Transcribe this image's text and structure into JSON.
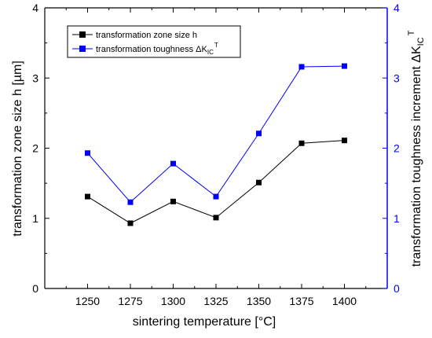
{
  "chart_data": {
    "type": "line",
    "xlabel": "sintering temperature [°C]",
    "ylabel_left": "transformation zone size h [µm]",
    "ylabel_right": "transformation toughness increment ΔK",
    "ylabel_right_sub": "IC",
    "ylabel_right_sup": "T",
    "x": [
      1250,
      1275,
      1300,
      1325,
      1350,
      1375,
      1400
    ],
    "x_ticks": [
      "1250",
      "1275",
      "1300",
      "1325",
      "1350",
      "1375",
      "1400"
    ],
    "xlim": [
      1225,
      1425
    ],
    "ylim_left": [
      0,
      4
    ],
    "ylim_right": [
      0,
      4
    ],
    "y_ticks_left": [
      "0",
      "1",
      "2",
      "3",
      "4"
    ],
    "y_ticks_right": [
      "0",
      "1",
      "2",
      "3",
      "4"
    ],
    "grid": false,
    "legend_position": "top-left",
    "series": [
      {
        "name": "transformation zone size h",
        "axis": "left",
        "color": "#000000",
        "marker": "square",
        "values": [
          1.31,
          0.93,
          1.24,
          1.01,
          1.51,
          2.07,
          2.11
        ]
      },
      {
        "name": "transformation toughness ΔK",
        "name_sub": "IC",
        "name_sup": "T",
        "axis": "right",
        "color": "#0000ff",
        "marker": "square",
        "values": [
          1.93,
          1.23,
          1.78,
          1.31,
          2.21,
          3.16,
          3.17
        ]
      }
    ]
  }
}
